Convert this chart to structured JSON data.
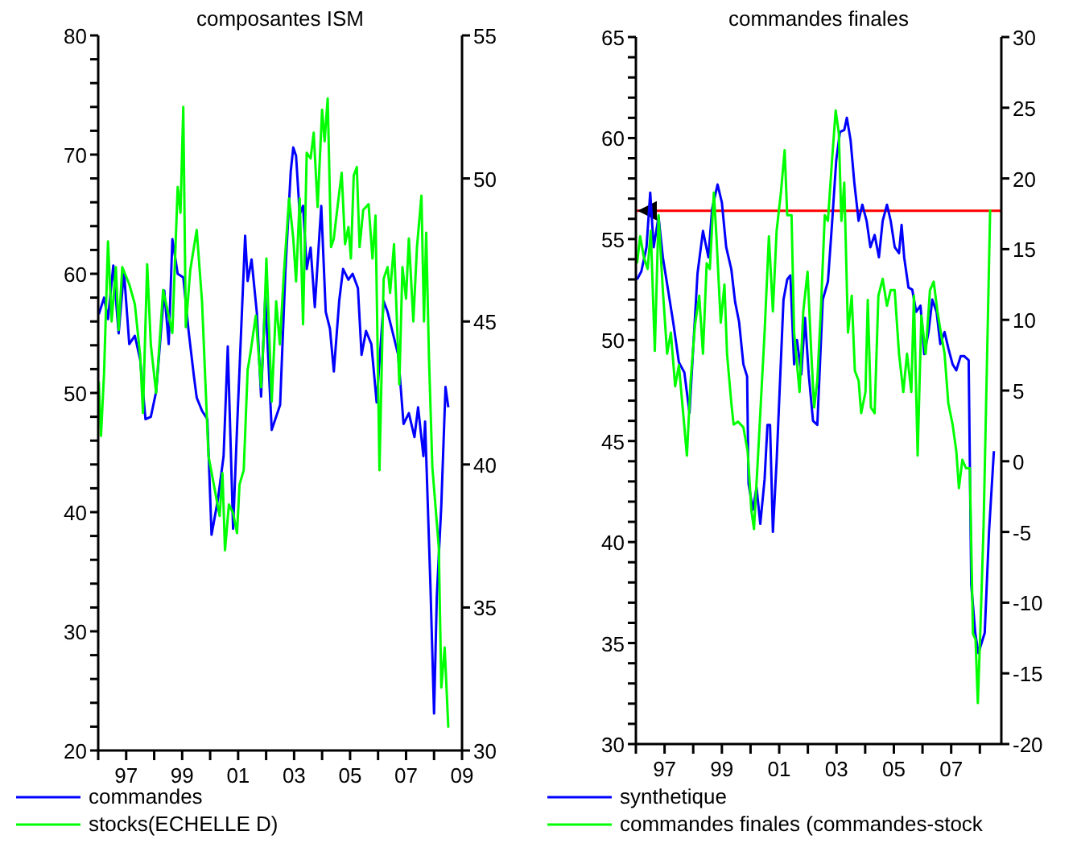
{
  "chart_data": [
    {
      "type": "line",
      "title": "composantes ISM",
      "legend": "bottom",
      "xlim": [
        1996,
        2009
      ],
      "xticks": [
        {
          "value": 1996,
          "label": null
        },
        {
          "value": 1997,
          "label": "97"
        },
        {
          "value": 1998,
          "label": null
        },
        {
          "value": 1999,
          "label": "99"
        },
        {
          "value": 2000,
          "label": null
        },
        {
          "value": 2001,
          "label": "01"
        },
        {
          "value": 2002,
          "label": null
        },
        {
          "value": 2003,
          "label": "03"
        },
        {
          "value": 2004,
          "label": null
        },
        {
          "value": 2005,
          "label": "05"
        },
        {
          "value": 2006,
          "label": null
        },
        {
          "value": 2007,
          "label": "07"
        },
        {
          "value": 2008,
          "label": null
        },
        {
          "value": 2009,
          "label": "09"
        }
      ],
      "ylim": [
        20,
        80
      ],
      "yticks": [
        20,
        {
          "value": 22,
          "label": null
        },
        {
          "value": 24,
          "label": null
        },
        {
          "value": 26,
          "label": null
        },
        {
          "value": 28,
          "label": null
        },
        30,
        {
          "value": 32,
          "label": null
        },
        {
          "value": 34,
          "label": null
        },
        {
          "value": 36,
          "label": null
        },
        {
          "value": 38,
          "label": null
        },
        40,
        {
          "value": 42,
          "label": null
        },
        {
          "value": 44,
          "label": null
        },
        {
          "value": 46,
          "label": null
        },
        {
          "value": 48,
          "label": null
        },
        50,
        {
          "value": 52,
          "label": null
        },
        {
          "value": 54,
          "label": null
        },
        {
          "value": 56,
          "label": null
        },
        {
          "value": 58,
          "label": null
        },
        60,
        {
          "value": 62,
          "label": null
        },
        {
          "value": 64,
          "label": null
        },
        {
          "value": 66,
          "label": null
        },
        {
          "value": 68,
          "label": null
        },
        70,
        {
          "value": 72,
          "label": null
        },
        {
          "value": 74,
          "label": null
        },
        {
          "value": 76,
          "label": null
        },
        {
          "value": 78,
          "label": null
        },
        80
      ],
      "y2lim": [
        30,
        55
      ],
      "y2ticks": [
        30,
        35,
        40,
        45,
        50,
        55
      ],
      "series": [
        {
          "name": "commandes",
          "color": "#0000ff",
          "x": [
            1996.02,
            1996.21,
            1996.35,
            1996.54,
            1996.73,
            1996.92,
            1997.11,
            1997.31,
            1997.5,
            1997.69,
            1997.88,
            1998.07,
            1998.36,
            1998.52,
            1998.65,
            1998.84,
            1999.04,
            1999.23,
            1999.42,
            1999.52,
            1999.71,
            1999.9,
            2000.05,
            2000.28,
            2000.48,
            2000.63,
            2000.82,
            2000.96,
            2001.25,
            2001.34,
            2001.48,
            2001.67,
            2001.82,
            2001.97,
            2002.2,
            2002.3,
            2002.5,
            2002.69,
            2002.88,
            2002.97,
            2003.07,
            2003.2,
            2003.32,
            2003.45,
            2003.59,
            2003.74,
            2003.97,
            2004.13,
            2004.28,
            2004.42,
            2004.61,
            2004.75,
            2004.94,
            2005.09,
            2005.28,
            2005.41,
            2005.57,
            2005.76,
            2005.95,
            2006.2,
            2006.34,
            2006.53,
            2006.72,
            2006.91,
            2007.1,
            2007.3,
            2007.43,
            2007.62,
            2007.68,
            2007.87,
            2008.0,
            2008.1,
            2008.26,
            2008.41,
            2008.51
          ],
          "values": [
            56.6,
            58.0,
            56.2,
            60.7,
            55.0,
            60.2,
            54.1,
            54.8,
            52.8,
            47.8,
            48.0,
            50.1,
            58.6,
            54.1,
            62.9,
            60.0,
            59.7,
            55.2,
            51.4,
            49.6,
            48.5,
            47.8,
            38.1,
            41.1,
            44.7,
            53.9,
            38.6,
            47.0,
            63.2,
            59.4,
            61.2,
            56.7,
            49.7,
            58.1,
            46.9,
            47.6,
            49.0,
            60.3,
            68.6,
            70.6,
            69.9,
            65.0,
            65.7,
            60.4,
            62.2,
            57.2,
            65.7,
            56.8,
            55.4,
            51.8,
            57.7,
            60.4,
            59.5,
            60.0,
            58.8,
            53.2,
            55.2,
            54.1,
            49.2,
            57.7,
            56.8,
            55.0,
            53.2,
            47.4,
            48.3,
            46.3,
            48.8,
            44.7,
            47.6,
            33.9,
            23.1,
            33.0,
            40.6,
            50.5,
            48.8
          ]
        },
        {
          "name": "stocks(ECHELLE D)",
          "color": "#00ff00",
          "axis": "y2",
          "x": [
            1996.02,
            1996.1,
            1996.21,
            1996.35,
            1996.48,
            1996.63,
            1996.73,
            1996.86,
            1997.11,
            1997.31,
            1997.5,
            1997.6,
            1997.75,
            1997.88,
            1998.07,
            1998.32,
            1998.65,
            1998.84,
            1998.94,
            1999.04,
            1999.13,
            1999.29,
            1999.52,
            1999.71,
            1999.94,
            2000.34,
            2000.44,
            2000.53,
            2000.67,
            2000.82,
            2000.96,
            2001.05,
            2001.2,
            2001.34,
            2001.44,
            2001.63,
            2001.82,
            2001.92,
            2002.01,
            2002.2,
            2002.36,
            2002.49,
            2002.63,
            2002.82,
            2002.97,
            2003.07,
            2003.2,
            2003.32,
            2003.45,
            2003.59,
            2003.7,
            2003.84,
            2004.0,
            2004.09,
            2004.2,
            2004.32,
            2004.42,
            2004.55,
            2004.7,
            2004.82,
            2004.94,
            2005.03,
            2005.13,
            2005.24,
            2005.34,
            2005.47,
            2005.66,
            2005.8,
            2005.91,
            2006.05,
            2006.2,
            2006.34,
            2006.43,
            2006.57,
            2006.76,
            2006.87,
            2007.0,
            2007.1,
            2007.26,
            2007.39,
            2007.55,
            2007.64,
            2007.72,
            2007.82,
            2007.94,
            2008.17,
            2008.26,
            2008.38,
            2008.51
          ],
          "values": [
            42.9,
            41.0,
            43.2,
            47.8,
            45.0,
            46.9,
            44.7,
            46.9,
            46.3,
            45.6,
            43.8,
            41.8,
            47.0,
            44.2,
            42.5,
            46.1,
            44.6,
            49.7,
            48.8,
            52.5,
            44.8,
            46.8,
            48.2,
            45.7,
            40.3,
            38.2,
            39.7,
            37.0,
            38.6,
            38.3,
            37.6,
            39.3,
            39.8,
            43.3,
            43.9,
            45.2,
            42.7,
            44.6,
            47.2,
            42.2,
            45.7,
            44.2,
            46.6,
            49.3,
            47.9,
            46.4,
            49.3,
            44.9,
            50.9,
            50.7,
            51.6,
            49.0,
            52.4,
            51.3,
            52.8,
            47.6,
            47.9,
            49.0,
            50.2,
            47.7,
            48.3,
            47.2,
            50.1,
            50.4,
            47.6,
            48.9,
            49.1,
            47.2,
            48.7,
            39.8,
            46.5,
            46.9,
            46.0,
            47.7,
            42.8,
            46.9,
            45.8,
            47.9,
            45.0,
            47.6,
            49.4,
            45.0,
            48.1,
            43.7,
            39.9,
            37.1,
            32.2,
            33.6,
            30.8
          ]
        }
      ]
    },
    {
      "type": "line",
      "title": "commandes finales",
      "legend": "bottom",
      "xlim": [
        1996,
        2008.75
      ],
      "xticks": [
        {
          "value": 1996,
          "label": null
        },
        {
          "value": 1997,
          "label": "97"
        },
        {
          "value": 1998,
          "label": null
        },
        {
          "value": 1999,
          "label": "99"
        },
        {
          "value": 2000,
          "label": null
        },
        {
          "value": 2001,
          "label": "01"
        },
        {
          "value": 2002,
          "label": null
        },
        {
          "value": 2003,
          "label": "03"
        },
        {
          "value": 2004,
          "label": null
        },
        {
          "value": 2005,
          "label": "05"
        },
        {
          "value": 2006,
          "label": null
        },
        {
          "value": 2007,
          "label": "07"
        },
        {
          "value": 2008,
          "label": null
        }
      ],
      "ylim": [
        30,
        65
      ],
      "yticks": [
        30,
        {
          "value": 31,
          "label": null
        },
        {
          "value": 32,
          "label": null
        },
        {
          "value": 33,
          "label": null
        },
        {
          "value": 34,
          "label": null
        },
        35,
        {
          "value": 36,
          "label": null
        },
        {
          "value": 37,
          "label": null
        },
        {
          "value": 38,
          "label": null
        },
        {
          "value": 39,
          "label": null
        },
        40,
        {
          "value": 41,
          "label": null
        },
        {
          "value": 42,
          "label": null
        },
        {
          "value": 43,
          "label": null
        },
        {
          "value": 44,
          "label": null
        },
        45,
        {
          "value": 46,
          "label": null
        },
        {
          "value": 47,
          "label": null
        },
        {
          "value": 48,
          "label": null
        },
        {
          "value": 49,
          "label": null
        },
        50,
        {
          "value": 51,
          "label": null
        },
        {
          "value": 52,
          "label": null
        },
        {
          "value": 53,
          "label": null
        },
        {
          "value": 54,
          "label": null
        },
        55,
        {
          "value": 56,
          "label": null
        },
        {
          "value": 57,
          "label": null
        },
        {
          "value": 58,
          "label": null
        },
        {
          "value": 59,
          "label": null
        },
        60,
        {
          "value": 61,
          "label": null
        },
        {
          "value": 62,
          "label": null
        },
        {
          "value": 63,
          "label": null
        },
        {
          "value": 64,
          "label": null
        },
        65
      ],
      "y2lim": [
        -20,
        30
      ],
      "y2ticks": [
        -20,
        -15,
        -10,
        -5,
        0,
        5,
        10,
        15,
        20,
        25,
        30
      ],
      "ref_lines": [
        {
          "axis": "y",
          "value": 56.4,
          "color": "#ff0000"
        }
      ],
      "series": [
        {
          "name": "synthetique",
          "color": "#0000ff",
          "x": [
            1996.04,
            1996.19,
            1996.37,
            1996.5,
            1996.62,
            1996.79,
            1996.94,
            1997.12,
            1997.31,
            1997.5,
            1997.69,
            1997.87,
            1998.15,
            1998.34,
            1998.53,
            1998.66,
            1998.85,
            1999.0,
            1999.15,
            1999.33,
            1999.46,
            1999.6,
            1999.75,
            1999.88,
            1999.93,
            2000.08,
            2000.21,
            2000.34,
            2000.49,
            2000.59,
            2000.68,
            2000.78,
            2000.91,
            2001.15,
            2001.28,
            2001.39,
            2001.52,
            2001.62,
            2001.77,
            2001.9,
            2002.03,
            2002.18,
            2002.33,
            2002.52,
            2002.7,
            2002.84,
            2002.99,
            2003.12,
            2003.27,
            2003.36,
            2003.49,
            2003.62,
            2003.77,
            2003.9,
            2004.05,
            2004.18,
            2004.33,
            2004.48,
            2004.61,
            2004.76,
            2004.89,
            2005.03,
            2005.18,
            2005.27,
            2005.36,
            2005.51,
            2005.64,
            2005.78,
            2005.93,
            2006.06,
            2006.21,
            2006.34,
            2006.49,
            2006.62,
            2006.77,
            2006.9,
            2007.05,
            2007.18,
            2007.33,
            2007.46,
            2007.61,
            2007.7,
            2007.84,
            2007.95,
            2008.17,
            2008.32,
            2008.49
          ],
          "values": [
            53.0,
            53.4,
            54.6,
            57.3,
            54.6,
            56.1,
            54.1,
            52.5,
            50.8,
            48.9,
            48.4,
            46.4,
            53.3,
            55.4,
            54.1,
            56.5,
            57.7,
            56.8,
            54.6,
            53.5,
            51.9,
            50.9,
            48.8,
            48.2,
            42.9,
            41.6,
            42.7,
            40.9,
            43.1,
            45.8,
            45.8,
            40.5,
            44.0,
            52.0,
            53.0,
            53.2,
            48.8,
            50.0,
            48.3,
            51.1,
            48.3,
            46.0,
            45.8,
            52.0,
            52.9,
            55.7,
            58.9,
            60.3,
            60.4,
            61.0,
            59.9,
            57.8,
            55.9,
            56.7,
            55.9,
            54.6,
            55.2,
            54.1,
            55.9,
            56.7,
            55.9,
            54.6,
            54.3,
            55.7,
            54.1,
            52.6,
            52.5,
            51.4,
            51.7,
            49.3,
            50.4,
            52.0,
            51.4,
            49.8,
            50.4,
            49.6,
            48.8,
            48.5,
            49.2,
            49.2,
            49.0,
            37.9,
            35.5,
            34.5,
            35.5,
            40.5,
            44.5
          ]
        },
        {
          "name": "commandes finales (commandes-stock",
          "color": "#00ff00",
          "axis": "y2",
          "x": [
            1996.04,
            1996.15,
            1996.28,
            1996.41,
            1996.52,
            1996.66,
            1996.79,
            1996.94,
            1997.09,
            1997.22,
            1997.37,
            1997.5,
            1997.78,
            1997.91,
            1998.06,
            1998.21,
            1998.34,
            1998.47,
            1998.58,
            1998.72,
            1998.81,
            1998.96,
            1999.09,
            1999.18,
            1999.33,
            1999.41,
            1999.56,
            1999.75,
            1999.9,
            2000.03,
            2000.12,
            2000.27,
            2000.4,
            2000.49,
            2000.64,
            2000.78,
            2000.91,
            2001.06,
            2001.19,
            2001.28,
            2001.43,
            2001.52,
            2001.71,
            2001.84,
            2001.99,
            2002.12,
            2002.22,
            2002.33,
            2002.46,
            2002.59,
            2002.7,
            2002.84,
            2002.97,
            2003.08,
            2003.17,
            2003.27,
            2003.4,
            2003.53,
            2003.64,
            2003.77,
            2003.86,
            2004.01,
            2004.09,
            2004.2,
            2004.33,
            2004.46,
            2004.61,
            2004.76,
            2004.89,
            2005.03,
            2005.18,
            2005.33,
            2005.46,
            2005.61,
            2005.7,
            2005.83,
            2005.96,
            2006.11,
            2006.26,
            2006.39,
            2006.52,
            2006.64,
            2006.77,
            2006.9,
            2007.05,
            2007.18,
            2007.27,
            2007.39,
            2007.52,
            2007.65,
            2007.76,
            2007.85,
            2007.93,
            2008.02,
            2008.13,
            2008.36
          ],
          "values": [
            14.0,
            15.9,
            14.4,
            13.6,
            16.3,
            7.8,
            17.4,
            12.1,
            7.6,
            9.1,
            5.3,
            6.8,
            0.4,
            5.7,
            9.6,
            11.7,
            7.6,
            14.0,
            13.6,
            19.0,
            15.9,
            9.8,
            12.5,
            7.6,
            4.1,
            2.6,
            2.8,
            2.4,
            0.7,
            -3.5,
            -4.8,
            0.7,
            5.7,
            9.1,
            15.9,
            10.6,
            16.3,
            19.0,
            22.0,
            17.4,
            17.4,
            9.1,
            4.9,
            10.6,
            13.4,
            7.6,
            3.8,
            5.7,
            11.0,
            17.4,
            17.0,
            21.2,
            24.8,
            23.2,
            17.0,
            19.7,
            9.1,
            11.7,
            6.4,
            5.7,
            3.4,
            4.9,
            11.4,
            3.8,
            3.4,
            11.7,
            12.9,
            11.0,
            12.1,
            12.1,
            7.6,
            4.9,
            7.6,
            4.9,
            11.7,
            0.4,
            10.3,
            7.6,
            12.1,
            12.7,
            10.6,
            9.1,
            7.6,
            4.1,
            2.6,
            0.7,
            -1.9,
            0.1,
            -0.5,
            -0.5,
            -12.2,
            -12.6,
            -17.1,
            -11.8,
            -4.6,
            17.8
          ]
        }
      ]
    }
  ]
}
